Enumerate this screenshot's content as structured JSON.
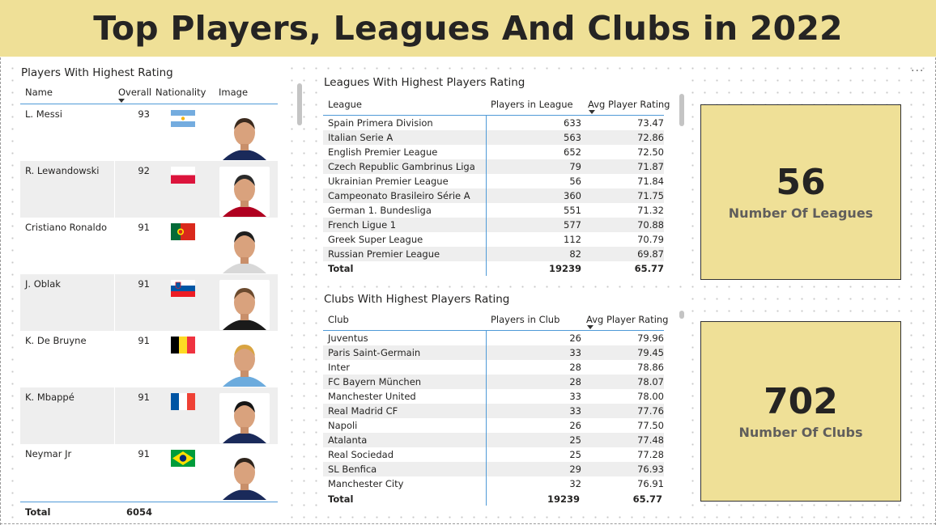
{
  "header": {
    "title": "Top Players, Leagues And Clubs in 2022"
  },
  "colors": {
    "header_bg": "#efe097",
    "card_bg": "#efe097",
    "accent_line": "#4f9ad7",
    "alt_row": "#eeeeee"
  },
  "players": {
    "title": "Players With Highest Rating",
    "columns": {
      "name": "Name",
      "overall": "Overall",
      "nationality": "Nationality",
      "image": "Image"
    },
    "rows": [
      {
        "name": "L. Messi",
        "overall": "93",
        "flag": "argentina-flag-icon",
        "image": "player-photo"
      },
      {
        "name": "R. Lewandowski",
        "overall": "92",
        "flag": "poland-flag-icon",
        "image": "player-photo"
      },
      {
        "name": "Cristiano Ronaldo",
        "overall": "91",
        "flag": "portugal-flag-icon",
        "image": "player-photo"
      },
      {
        "name": "J. Oblak",
        "overall": "91",
        "flag": "slovenia-flag-icon",
        "image": "player-photo"
      },
      {
        "name": "K. De Bruyne",
        "overall": "91",
        "flag": "belgium-flag-icon",
        "image": "player-photo"
      },
      {
        "name": "K. Mbappé",
        "overall": "91",
        "flag": "france-flag-icon",
        "image": "player-photo"
      },
      {
        "name": "Neymar Jr",
        "overall": "91",
        "flag": "brazil-flag-icon",
        "image": "player-photo"
      }
    ],
    "total_label": "Total",
    "total_value": "6054"
  },
  "leagues": {
    "title": "Leagues With Highest Players Rating",
    "columns": {
      "league": "League",
      "players": "Players in League",
      "avg": "Avg Player Rating"
    },
    "rows": [
      {
        "name": "Spain Primera Division",
        "players": "633",
        "avg": "73.47"
      },
      {
        "name": "Italian Serie A",
        "players": "563",
        "avg": "72.86"
      },
      {
        "name": "English Premier League",
        "players": "652",
        "avg": "72.50"
      },
      {
        "name": "Czech Republic Gambrinus Liga",
        "players": "79",
        "avg": "71.87"
      },
      {
        "name": "Ukrainian Premier League",
        "players": "56",
        "avg": "71.84"
      },
      {
        "name": "Campeonato Brasileiro Série A",
        "players": "360",
        "avg": "71.75"
      },
      {
        "name": "German 1. Bundesliga",
        "players": "551",
        "avg": "71.32"
      },
      {
        "name": "French Ligue 1",
        "players": "577",
        "avg": "70.88"
      },
      {
        "name": "Greek Super League",
        "players": "112",
        "avg": "70.79"
      },
      {
        "name": "Russian Premier League",
        "players": "82",
        "avg": "69.87"
      }
    ],
    "total": {
      "label": "Total",
      "players": "19239",
      "avg": "65.77"
    }
  },
  "clubs": {
    "title": "Clubs With Highest Players Rating",
    "columns": {
      "club": "Club",
      "players": "Players in Club",
      "avg": "Avg Player Rating"
    },
    "rows": [
      {
        "name": "Juventus",
        "players": "26",
        "avg": "79.96"
      },
      {
        "name": "Paris Saint-Germain",
        "players": "33",
        "avg": "79.45"
      },
      {
        "name": "Inter",
        "players": "28",
        "avg": "78.86"
      },
      {
        "name": "FC Bayern München",
        "players": "28",
        "avg": "78.07"
      },
      {
        "name": "Manchester United",
        "players": "33",
        "avg": "78.00"
      },
      {
        "name": "Real Madrid CF",
        "players": "33",
        "avg": "77.76"
      },
      {
        "name": "Napoli",
        "players": "26",
        "avg": "77.50"
      },
      {
        "name": "Atalanta",
        "players": "25",
        "avg": "77.48"
      },
      {
        "name": "Real Sociedad",
        "players": "25",
        "avg": "77.28"
      },
      {
        "name": "SL Benfica",
        "players": "29",
        "avg": "76.93"
      },
      {
        "name": "Manchester City",
        "players": "32",
        "avg": "76.91"
      }
    ],
    "total": {
      "label": "Total",
      "players": "19239",
      "avg": "65.77"
    }
  },
  "cards": {
    "leagues": {
      "value": "56",
      "label": "Number Of Leagues"
    },
    "clubs": {
      "value": "702",
      "label": "Number Of Clubs"
    }
  },
  "more_options": "···"
}
